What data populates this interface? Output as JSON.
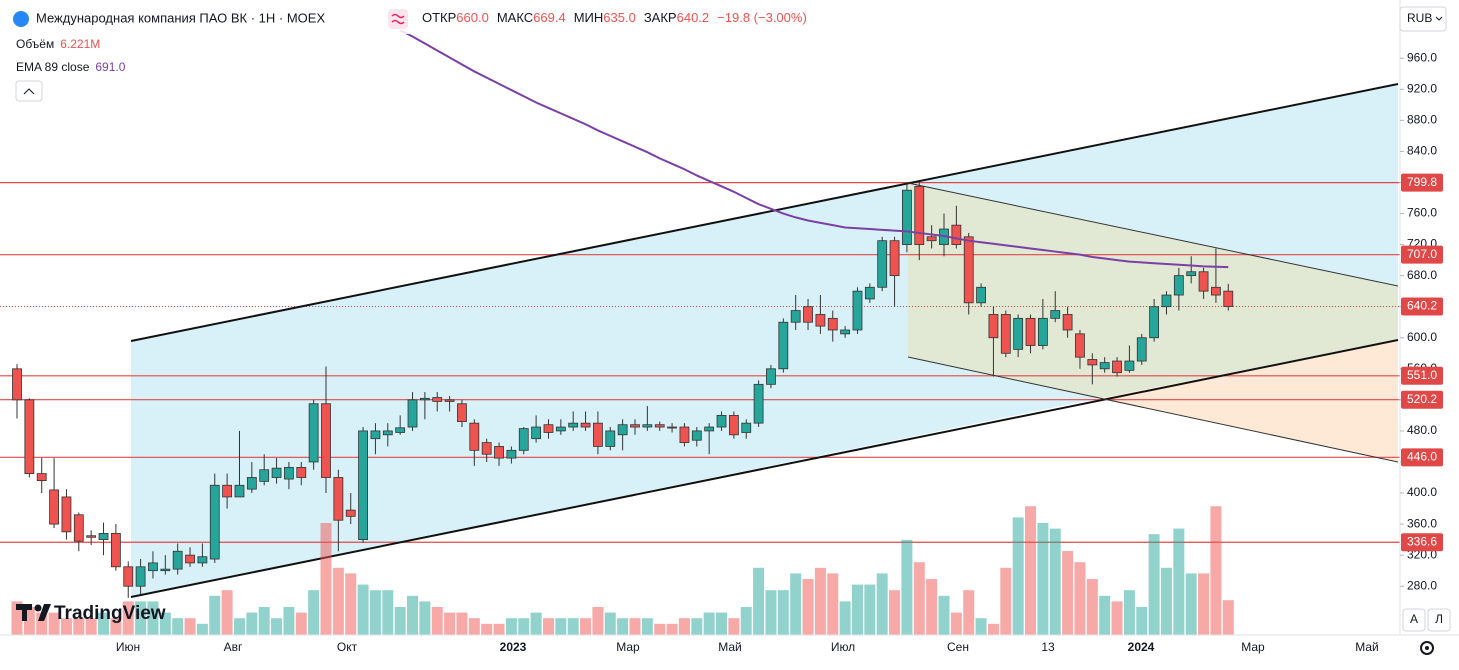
{
  "header": {
    "title": "Международная компания ПАО ВК · 1Н · MOEX",
    "ohlc": [
      {
        "label": "ОТКР",
        "value": "660.0"
      },
      {
        "label": "МАКС",
        "value": "669.4"
      },
      {
        "label": "МИН",
        "value": "635.0"
      },
      {
        "label": "ЗАКР",
        "value": "640.2"
      }
    ],
    "change": "−19.8 (−3.00%)",
    "currency": "RUB",
    "indicators": [
      {
        "name": "Объём",
        "value": "6.221M"
      },
      {
        "name": "EMA 89 close",
        "value": "691.0"
      }
    ],
    "brand": "TradingView",
    "buttons": [
      "A",
      "Л"
    ]
  },
  "chart_data": {
    "type": "candlestick",
    "ylim": [
      250,
      1035
    ],
    "yticks": [
      {
        "value": 280,
        "label": "280.0"
      },
      {
        "value": 320,
        "label": "320.0"
      },
      {
        "value": 360,
        "label": "360.0"
      },
      {
        "value": 400,
        "label": "400.0"
      },
      {
        "value": 440,
        "label": "440.0"
      },
      {
        "value": 480,
        "label": "480.0"
      },
      {
        "value": 520,
        "label": "520.0"
      },
      {
        "value": 560,
        "label": "560.0"
      },
      {
        "value": 600,
        "label": "600.0"
      },
      {
        "value": 640,
        "label": "640.0"
      },
      {
        "value": 680,
        "label": "680.0"
      },
      {
        "value": 720,
        "label": "720.0"
      },
      {
        "value": 760,
        "label": "760.0"
      },
      {
        "value": 800,
        "label": "800.0"
      },
      {
        "value": 840,
        "label": "840.0"
      },
      {
        "value": 880,
        "label": "880.0"
      },
      {
        "value": 920,
        "label": "920.0"
      },
      {
        "value": 960,
        "label": "960.0"
      }
    ],
    "xlabels": [
      "Июн",
      "Авг",
      "Окт",
      "2023",
      "Мар",
      "Май",
      "Июл",
      "Сен",
      "13",
      "2024",
      "Мар",
      "Май"
    ],
    "levels": [
      {
        "value": 799.8,
        "label": "799.8"
      },
      {
        "value": 707.0,
        "label": "707.0"
      },
      {
        "value": 640.2,
        "label": "640.2",
        "dotted": true
      },
      {
        "value": 551.0,
        "label": "551.0"
      },
      {
        "value": 520.2,
        "label": "520.2"
      },
      {
        "value": 446.0,
        "label": "446.0"
      },
      {
        "value": 336.6,
        "label": "336.6"
      }
    ],
    "colors": {
      "up": "#26a69a",
      "down": "#ef5350",
      "ema": "#7b3fa6",
      "level": "#e04848"
    },
    "candles": [
      [
        560,
        566,
        496,
        520
      ],
      [
        520,
        522,
        420,
        425
      ],
      [
        425,
        445,
        400,
        416
      ],
      [
        404,
        445,
        355,
        360
      ],
      [
        395,
        405,
        340,
        350
      ],
      [
        372,
        375,
        325,
        338
      ],
      [
        345,
        352,
        333,
        343
      ],
      [
        340,
        362,
        320,
        348
      ],
      [
        348,
        360,
        300,
        305
      ],
      [
        305,
        312,
        265,
        280
      ],
      [
        280,
        315,
        270,
        305
      ],
      [
        300,
        325,
        290,
        310
      ],
      [
        300,
        320,
        295,
        302
      ],
      [
        302,
        335,
        295,
        325
      ],
      [
        320,
        330,
        305,
        310
      ],
      [
        310,
        335,
        305,
        318
      ],
      [
        315,
        425,
        310,
        410
      ],
      [
        410,
        425,
        380,
        395
      ],
      [
        395,
        480,
        395,
        410
      ],
      [
        405,
        440,
        400,
        420
      ],
      [
        415,
        450,
        410,
        430
      ],
      [
        420,
        445,
        412,
        432
      ],
      [
        418,
        440,
        405,
        433
      ],
      [
        433,
        440,
        410,
        420
      ],
      [
        440,
        520,
        430,
        515
      ],
      [
        515,
        563,
        400,
        420
      ],
      [
        420,
        430,
        325,
        365
      ],
      [
        378,
        400,
        360,
        370
      ],
      [
        340,
        485,
        336,
        480
      ],
      [
        470,
        490,
        450,
        480
      ],
      [
        475,
        490,
        460,
        480
      ],
      [
        478,
        500,
        475,
        484
      ],
      [
        485,
        530,
        480,
        520
      ],
      [
        520,
        530,
        495,
        522
      ],
      [
        523,
        530,
        505,
        518
      ],
      [
        520,
        525,
        505,
        518
      ],
      [
        515,
        520,
        485,
        492
      ],
      [
        490,
        495,
        435,
        455
      ],
      [
        465,
        470,
        440,
        450
      ],
      [
        460,
        465,
        435,
        445
      ],
      [
        445,
        460,
        438,
        455
      ],
      [
        455,
        485,
        450,
        483
      ],
      [
        470,
        500,
        465,
        485
      ],
      [
        488,
        495,
        470,
        478
      ],
      [
        480,
        495,
        475,
        485
      ],
      [
        485,
        505,
        480,
        490
      ],
      [
        490,
        505,
        480,
        485
      ],
      [
        490,
        505,
        450,
        460
      ],
      [
        460,
        485,
        455,
        480
      ],
      [
        475,
        495,
        455,
        488
      ],
      [
        488,
        495,
        475,
        485
      ],
      [
        485,
        512,
        480,
        488
      ],
      [
        488,
        492,
        480,
        485
      ],
      [
        485,
        490,
        478,
        484
      ],
      [
        485,
        490,
        460,
        465
      ],
      [
        468,
        485,
        460,
        480
      ],
      [
        480,
        490,
        450,
        485
      ],
      [
        485,
        505,
        480,
        500
      ],
      [
        500,
        505,
        470,
        475
      ],
      [
        478,
        495,
        470,
        490
      ],
      [
        490,
        545,
        485,
        540
      ],
      [
        540,
        565,
        535,
        560
      ],
      [
        560,
        625,
        555,
        620
      ],
      [
        620,
        655,
        610,
        635
      ],
      [
        640,
        650,
        610,
        620
      ],
      [
        630,
        655,
        605,
        615
      ],
      [
        625,
        635,
        595,
        610
      ],
      [
        605,
        615,
        600,
        610
      ],
      [
        610,
        665,
        605,
        660
      ],
      [
        650,
        670,
        645,
        665
      ],
      [
        665,
        730,
        660,
        725
      ],
      [
        725,
        730,
        640,
        680
      ],
      [
        720,
        800,
        710,
        790
      ],
      [
        795,
        800,
        700,
        720
      ],
      [
        730,
        745,
        715,
        725
      ],
      [
        720,
        760,
        705,
        740
      ],
      [
        745,
        770,
        715,
        720
      ],
      [
        730,
        735,
        630,
        645
      ],
      [
        645,
        670,
        640,
        665
      ],
      [
        630,
        640,
        550,
        600
      ],
      [
        630,
        635,
        575,
        580
      ],
      [
        585,
        630,
        575,
        625
      ],
      [
        625,
        630,
        580,
        590
      ],
      [
        590,
        650,
        585,
        625
      ],
      [
        625,
        660,
        620,
        635
      ],
      [
        630,
        640,
        600,
        610
      ],
      [
        605,
        610,
        560,
        575
      ],
      [
        572,
        580,
        540,
        565
      ],
      [
        560,
        575,
        555,
        568
      ],
      [
        570,
        575,
        550,
        555
      ],
      [
        558,
        590,
        555,
        570
      ],
      [
        570,
        605,
        565,
        600
      ],
      [
        600,
        650,
        595,
        640
      ],
      [
        640,
        660,
        630,
        655
      ],
      [
        655,
        690,
        635,
        680
      ],
      [
        680,
        705,
        670,
        685
      ],
      [
        685,
        690,
        650,
        660
      ],
      [
        665,
        715,
        645,
        655
      ],
      [
        660,
        669.4,
        635,
        640.2
      ]
    ],
    "volume": [
      6,
      5,
      4,
      4,
      3,
      3,
      3,
      4,
      3,
      6,
      6,
      6,
      4,
      3,
      3,
      2,
      7,
      8,
      3,
      4,
      5,
      3,
      5,
      4,
      8,
      20,
      12,
      11,
      9,
      8,
      8,
      5,
      7,
      6,
      5,
      4,
      4,
      3,
      2,
      2,
      3,
      3,
      4,
      3,
      3,
      3,
      3,
      5,
      4,
      3,
      3,
      3,
      2,
      2,
      3,
      3,
      4,
      4,
      3,
      5,
      12,
      8,
      8,
      11,
      10,
      12,
      11,
      6,
      9,
      9,
      11,
      8,
      17,
      13,
      10,
      7,
      4,
      8,
      3,
      2,
      12,
      21,
      23,
      20,
      19,
      15,
      13,
      10,
      7,
      6,
      8,
      5,
      18,
      12,
      19,
      11,
      11,
      23,
      6.221
    ],
    "ema": [
      null,
      null,
      null,
      null,
      null,
      null,
      null,
      null,
      null,
      null,
      null,
      null,
      null,
      null,
      null,
      null,
      null,
      null,
      null,
      null,
      null,
      null,
      null,
      null,
      null,
      null,
      null,
      null,
      null,
      null,
      null,
      996,
      988,
      979,
      970,
      961,
      952,
      943,
      935,
      927,
      919,
      911,
      903,
      896,
      889,
      882,
      875,
      867,
      860,
      853,
      846,
      839,
      831,
      824,
      817,
      809,
      802,
      795,
      788,
      780,
      772,
      766,
      760,
      755,
      751,
      748,
      745,
      742,
      741,
      740,
      739,
      738,
      737,
      735,
      733,
      731,
      728,
      725,
      723,
      721,
      719,
      717,
      715,
      713,
      711,
      709,
      707,
      704,
      702,
      700,
      698,
      697,
      696,
      695,
      694,
      693,
      692,
      691.5,
      691
    ]
  }
}
